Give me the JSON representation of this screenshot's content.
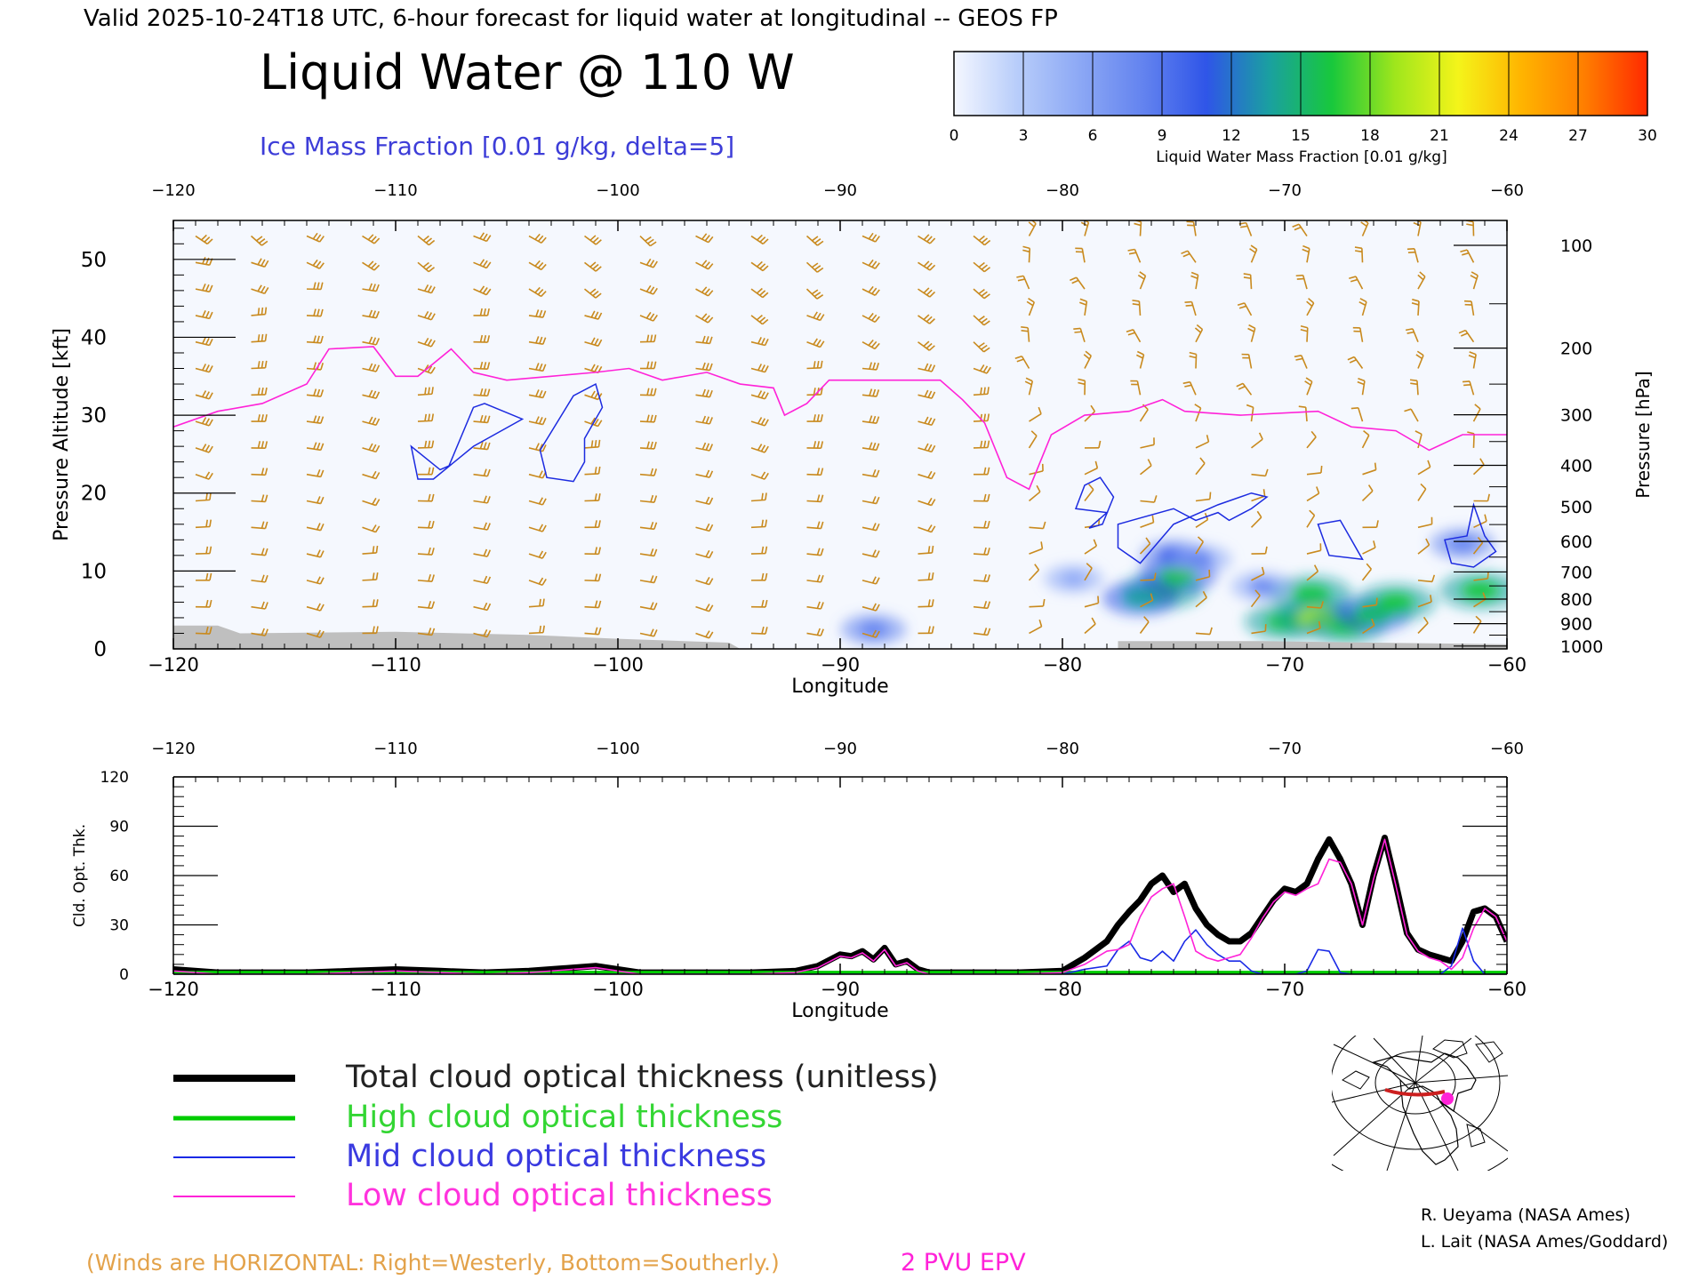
{
  "header": {
    "valid_line": "Valid 2025-10-24T18 UTC, 6-hour forecast for liquid water at longitudinal -- GEOS FP",
    "title": "Liquid Water @ 110 W",
    "subtitle": "Ice Mass Fraction [0.01 g/kg, delta=5]"
  },
  "colorbar": {
    "ticks": [
      "0",
      "3",
      "6",
      "9",
      "12",
      "15",
      "18",
      "21",
      "24",
      "27",
      "30"
    ],
    "colors": [
      "#f4f7ff",
      "#b8cdfa",
      "#8ca8f5",
      "#6383ef",
      "#2f55e8",
      "#1aa0a0",
      "#18c83c",
      "#9fe61c",
      "#f4f41a",
      "#ffb400",
      "#ff7e00",
      "#ff2a00"
    ],
    "label": "Liquid Water Mass Fraction [0.01 g/kg]"
  },
  "colors": {
    "wind_barb": "#c98a1e",
    "ice_contour": "#1c2be0",
    "epv_line": "#ff22d8",
    "terrain": "#bfbfbf",
    "total": "#000000",
    "high": "#00cc00",
    "mid": "#1a2ae6",
    "low": "#ff22d8"
  },
  "chart_data": [
    {
      "type": "heatmap",
      "title": "Liquid Water @ 110 W",
      "xlabel": "Longitude",
      "ylabel": "Pressure Altitude [kft]",
      "y2label": "Pressure [hPa]",
      "xlim": [
        -120,
        -60
      ],
      "ylim": [
        0,
        55
      ],
      "x_ticks": [
        "−120",
        "−110",
        "−100",
        "−90",
        "−80",
        "−70",
        "−60"
      ],
      "y_ticks": [
        "0",
        "10",
        "20",
        "30",
        "40",
        "50"
      ],
      "pressure_ticks": [
        "100",
        "200",
        "300",
        "400",
        "500",
        "600",
        "700",
        "800",
        "900",
        "1000"
      ],
      "liquid_water_cells": [
        {
          "lon": -75.5,
          "alt": 7.5,
          "value": 17
        },
        {
          "lon": -74.8,
          "alt": 9.5,
          "value": 15
        },
        {
          "lon": -76.5,
          "alt": 6.5,
          "value": 14
        },
        {
          "lon": -75.0,
          "alt": 12.0,
          "value": 10
        },
        {
          "lon": -73.8,
          "alt": 11.5,
          "value": 8
        },
        {
          "lon": -70.0,
          "alt": 3.5,
          "value": 16
        },
        {
          "lon": -68.8,
          "alt": 7.0,
          "value": 17
        },
        {
          "lon": -68.5,
          "alt": 4.0,
          "value": 18
        },
        {
          "lon": -67.2,
          "alt": 3.0,
          "value": 16
        },
        {
          "lon": -66.0,
          "alt": 4.5,
          "value": 15
        },
        {
          "lon": -65.0,
          "alt": 6.0,
          "value": 16
        },
        {
          "lon": -61.2,
          "alt": 7.5,
          "value": 17
        },
        {
          "lon": -62.0,
          "alt": 13.5,
          "value": 9
        },
        {
          "lon": -88.5,
          "alt": 2.5,
          "value": 9
        },
        {
          "lon": -79.5,
          "alt": 9.0,
          "value": 6
        },
        {
          "lon": -71.0,
          "alt": 8.0,
          "value": 8
        }
      ],
      "ice_contours": [
        [
          [
            -108.0,
            23.0
          ],
          [
            -107.6,
            23.5
          ],
          [
            -106.5,
            31.0
          ],
          [
            -106.0,
            31.5
          ],
          [
            -104.3,
            29.5
          ],
          [
            -106.5,
            26.0
          ],
          [
            -108.3,
            21.8
          ],
          [
            -109.0,
            21.8
          ],
          [
            -109.3,
            26.0
          ]
        ],
        [
          [
            -102.0,
            21.5
          ],
          [
            -103.2,
            22.0
          ],
          [
            -103.5,
            25.5
          ],
          [
            -102.0,
            32.5
          ],
          [
            -101.0,
            34.0
          ],
          [
            -100.7,
            31.0
          ],
          [
            -101.5,
            27.0
          ],
          [
            -101.5,
            24.0
          ]
        ],
        [
          [
            -79.0,
            21.0
          ],
          [
            -78.3,
            22.0
          ],
          [
            -77.7,
            19.5
          ],
          [
            -78.2,
            16.0
          ],
          [
            -78.8,
            15.5
          ],
          [
            -78.0,
            17.5
          ],
          [
            -79.4,
            18.0
          ]
        ],
        [
          [
            -77.5,
            13.0
          ],
          [
            -77.5,
            16.0
          ],
          [
            -75.0,
            18.0
          ],
          [
            -74.0,
            16.5
          ],
          [
            -73.0,
            17.5
          ],
          [
            -72.5,
            16.5
          ],
          [
            -71.5,
            18.0
          ],
          [
            -70.8,
            19.5
          ],
          [
            -71.5,
            20.0
          ],
          [
            -73.0,
            18.5
          ],
          [
            -75.0,
            16.0
          ],
          [
            -76.5,
            11.0
          ]
        ],
        [
          [
            -67.5,
            16.5
          ],
          [
            -68.5,
            16.0
          ],
          [
            -68.0,
            12.0
          ],
          [
            -66.5,
            11.5
          ],
          [
            -67.0,
            14.0
          ]
        ],
        [
          [
            -61.8,
            14.5
          ],
          [
            -62.8,
            14.0
          ],
          [
            -62.5,
            11.0
          ],
          [
            -61.5,
            10.5
          ],
          [
            -60.5,
            12.5
          ],
          [
            -61.0,
            14.5
          ],
          [
            -61.5,
            18.5
          ]
        ]
      ],
      "epv_2pvu_line": [
        {
          "lon": -120,
          "alt": 28.5
        },
        {
          "lon": -118,
          "alt": 30.5
        },
        {
          "lon": -116,
          "alt": 31.5
        },
        {
          "lon": -114,
          "alt": 34.0
        },
        {
          "lon": -113,
          "alt": 38.5
        },
        {
          "lon": -111,
          "alt": 38.8
        },
        {
          "lon": -110,
          "alt": 35.0
        },
        {
          "lon": -109,
          "alt": 35.0
        },
        {
          "lon": -107.5,
          "alt": 38.5
        },
        {
          "lon": -106.5,
          "alt": 35.5
        },
        {
          "lon": -105,
          "alt": 34.5
        },
        {
          "lon": -103,
          "alt": 35.0
        },
        {
          "lon": -101,
          "alt": 35.5
        },
        {
          "lon": -99.5,
          "alt": 36.0
        },
        {
          "lon": -98,
          "alt": 34.5
        },
        {
          "lon": -96,
          "alt": 35.5
        },
        {
          "lon": -94.5,
          "alt": 34.0
        },
        {
          "lon": -93,
          "alt": 33.5
        },
        {
          "lon": -92.5,
          "alt": 30.0
        },
        {
          "lon": -91.5,
          "alt": 31.5
        },
        {
          "lon": -90.5,
          "alt": 34.5
        },
        {
          "lon": -88,
          "alt": 34.5
        },
        {
          "lon": -85.5,
          "alt": 34.5
        },
        {
          "lon": -84.5,
          "alt": 32.0
        },
        {
          "lon": -83.5,
          "alt": 29.0
        },
        {
          "lon": -82.5,
          "alt": 22.0
        },
        {
          "lon": -81.5,
          "alt": 20.5
        },
        {
          "lon": -80.5,
          "alt": 27.5
        },
        {
          "lon": -79,
          "alt": 30.0
        },
        {
          "lon": -77,
          "alt": 30.5
        },
        {
          "lon": -75.5,
          "alt": 32.0
        },
        {
          "lon": -74.5,
          "alt": 30.5
        },
        {
          "lon": -72,
          "alt": 30.0
        },
        {
          "lon": -68.5,
          "alt": 30.5
        },
        {
          "lon": -67,
          "alt": 28.5
        },
        {
          "lon": -65,
          "alt": 28.0
        },
        {
          "lon": -63.5,
          "alt": 25.5
        },
        {
          "lon": -62,
          "alt": 27.5
        },
        {
          "lon": -60,
          "alt": 27.5
        }
      ],
      "terrain_alt_kft": [
        {
          "lon": -120,
          "alt": 3.0
        },
        {
          "lon": -118,
          "alt": 3.0
        },
        {
          "lon": -117,
          "alt": 2.0
        },
        {
          "lon": -110,
          "alt": 2.2
        },
        {
          "lon": -104,
          "alt": 1.8
        },
        {
          "lon": -100,
          "alt": 1.3
        },
        {
          "lon": -95,
          "alt": 0.8
        },
        {
          "lon": -94.5,
          "alt": 0
        },
        {
          "lon": -77.5,
          "alt": 0
        },
        {
          "lon": -77.5,
          "alt": 1.0
        },
        {
          "lon": -71,
          "alt": 1.0
        },
        {
          "lon": -66,
          "alt": 0.8
        },
        {
          "lon": -60,
          "alt": 0.6
        }
      ]
    },
    {
      "type": "line",
      "ylabel": "Cld. Opt. Thk.",
      "xlabel": "Longitude",
      "xlim": [
        -120,
        -60
      ],
      "ylim": [
        0,
        120
      ],
      "x_ticks": [
        "−120",
        "−110",
        "−100",
        "−90",
        "−80",
        "−70",
        "−60"
      ],
      "y_ticks": [
        "0",
        "30",
        "60",
        "90",
        "120"
      ],
      "x": [
        -120,
        -118,
        -116,
        -114,
        -112,
        -110,
        -108,
        -106,
        -104,
        -102,
        -101,
        -100,
        -99,
        -98,
        -96,
        -94,
        -92,
        -91,
        -90,
        -89.5,
        -89,
        -88.5,
        -88,
        -87.5,
        -87,
        -86.5,
        -86,
        -84,
        -82,
        -80,
        -79,
        -78,
        -77.5,
        -77,
        -76.5,
        -76,
        -75.5,
        -75,
        -74.5,
        -74,
        -73.5,
        -73,
        -72.5,
        -72,
        -71.5,
        -71,
        -70.5,
        -70,
        -69.5,
        -69,
        -68.5,
        -68,
        -67.5,
        -67,
        -66.5,
        -66,
        -65.5,
        -65,
        -64.5,
        -64,
        -63.5,
        -63,
        -62.5,
        -62,
        -61.5,
        -61,
        -60.5,
        -60
      ],
      "series": [
        {
          "name": "Total cloud optical thickness (unitless)",
          "color": "#000000",
          "values": [
            3,
            1,
            1,
            1,
            2,
            3,
            2,
            1,
            2,
            4,
            5,
            3,
            1,
            1,
            1,
            1,
            2,
            5,
            12,
            11,
            14,
            9,
            16,
            6,
            8,
            3,
            1,
            1,
            1,
            2,
            10,
            20,
            30,
            38,
            45,
            55,
            60,
            50,
            55,
            40,
            30,
            24,
            20,
            20,
            25,
            35,
            45,
            52,
            50,
            55,
            70,
            82,
            70,
            55,
            30,
            60,
            83,
            55,
            25,
            15,
            12,
            10,
            8,
            20,
            38,
            40,
            35,
            20
          ]
        },
        {
          "name": "High cloud optical thickness",
          "color": "#00cc00",
          "values": [
            1,
            1,
            1,
            1,
            1,
            1,
            1,
            1,
            1,
            1,
            1,
            1,
            1,
            1,
            1,
            1,
            1,
            1,
            1,
            1,
            1,
            1,
            1,
            1,
            1,
            1,
            1,
            1,
            1,
            1,
            1,
            1,
            1,
            1,
            1,
            1,
            1,
            1,
            1,
            1,
            1,
            1,
            1,
            1,
            1,
            1,
            1,
            1,
            1,
            1,
            1,
            1,
            1,
            1,
            1,
            1,
            1,
            1,
            1,
            1,
            1,
            1,
            1,
            1,
            1,
            1,
            1,
            1
          ]
        },
        {
          "name": "Mid cloud optical thickness",
          "color": "#1a2ae6",
          "values": [
            0,
            0,
            0,
            0,
            0,
            0,
            0,
            0,
            0,
            0,
            0,
            0,
            0,
            0,
            0,
            0,
            0,
            0,
            0,
            0,
            0,
            0,
            0,
            0,
            0,
            0,
            0,
            0,
            0,
            0,
            3,
            5,
            15,
            20,
            10,
            8,
            14,
            8,
            20,
            27,
            18,
            12,
            8,
            8,
            2,
            0,
            0,
            0,
            0,
            2,
            15,
            14,
            1,
            0,
            0,
            0,
            0,
            0,
            0,
            0,
            0,
            0,
            5,
            28,
            8,
            0,
            0,
            0
          ]
        },
        {
          "name": "Low cloud optical thickness",
          "color": "#ff22d8",
          "values": [
            2,
            0,
            0,
            0,
            1,
            2,
            1,
            0,
            1,
            3,
            4,
            2,
            0,
            0,
            0,
            0,
            1,
            4,
            11,
            10,
            13,
            8,
            15,
            5,
            7,
            2,
            0,
            0,
            0,
            1,
            6,
            14,
            15,
            18,
            35,
            47,
            52,
            55,
            35,
            14,
            10,
            8,
            10,
            12,
            22,
            34,
            44,
            50,
            48,
            52,
            55,
            70,
            68,
            55,
            30,
            58,
            82,
            54,
            24,
            14,
            10,
            8,
            3,
            10,
            28,
            40,
            35,
            20
          ]
        }
      ]
    }
  ],
  "legend": {
    "total": "Total cloud optical thickness (unitless)",
    "high": "High cloud optical thickness",
    "mid": "Mid cloud optical thickness",
    "low": "Low cloud optical thickness"
  },
  "footer": {
    "winds_note": "(Winds are HORIZONTAL: Right=Westerly, Bottom=Southerly.)",
    "epv_label": "2 PVU EPV",
    "credit1": "R. Ueyama (NASA Ames)",
    "credit2": "L. Lait (NASA Ames/Goddard)"
  },
  "map_inset": {
    "icon": "north-america-polar-map-icon",
    "track_color": "#cc1f1f",
    "marker_color": "#ff22d8"
  }
}
